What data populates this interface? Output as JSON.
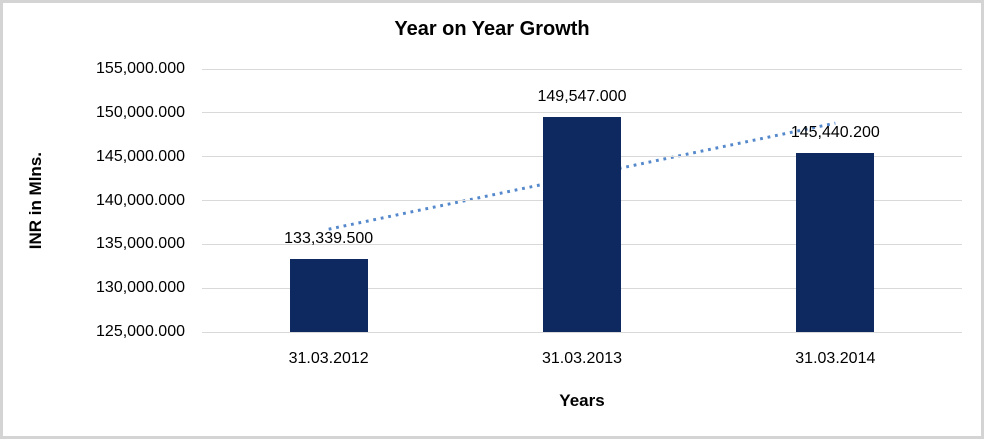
{
  "chart_data": {
    "type": "bar",
    "title": "Year on Year Growth",
    "xlabel": "Years",
    "ylabel": "INR in Mlns.",
    "categories": [
      "31.03.2012",
      "31.03.2013",
      "31.03.2014"
    ],
    "values": [
      133339.5,
      149547.0,
      145440.2
    ],
    "data_labels": [
      "133,339.500",
      "149,547.000",
      "145,440.200"
    ],
    "ylim": [
      125000,
      155000
    ],
    "y_tick_step": 5000,
    "y_tick_labels": [
      "125,000.000",
      "130,000.000",
      "135,000.000",
      "140,000.000",
      "145,000.000",
      "150,000.000",
      "155,000.000"
    ],
    "grid": true,
    "legend": false,
    "trendline": {
      "type": "linear",
      "style": "dotted",
      "start_value": 136725.2,
      "end_value": 148825.9
    }
  },
  "colors": {
    "bar": "#0E2960",
    "trendline": "#5589CB",
    "gridline": "#D9D9D9",
    "frame_border": "#D4D4D4",
    "text": "#000000",
    "background": "#FFFFFF"
  }
}
